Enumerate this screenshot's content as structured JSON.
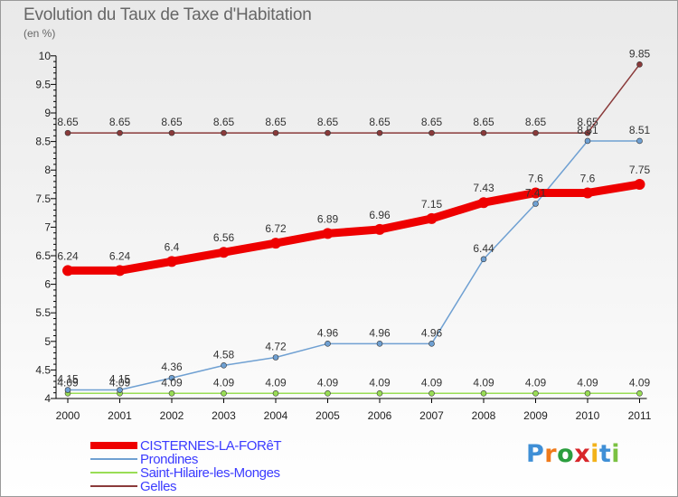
{
  "title": "Evolution du Taux de Taxe d'Habitation",
  "subtitle": "(en %)",
  "chart_data": {
    "type": "line",
    "title": "Evolution du Taux de Taxe d'Habitation",
    "ylabel": "(en %)",
    "xlabel": "",
    "x": [
      "2000",
      "2001",
      "2002",
      "2003",
      "2004",
      "2005",
      "2006",
      "2007",
      "2008",
      "2009",
      "2010",
      "2011"
    ],
    "ylim": [
      4,
      10
    ],
    "yticks": [
      "4",
      "4.5",
      "5",
      "5.5",
      "6",
      "6.5",
      "7",
      "7.5",
      "8",
      "8.5",
      "9",
      "9.5",
      "10"
    ],
    "grid": false,
    "legend": "bottom-left",
    "series": [
      {
        "name": "CISTERNES-LA-FORêT",
        "color": "#ee0000",
        "values": [
          6.24,
          6.24,
          6.4,
          6.56,
          6.72,
          6.89,
          6.96,
          7.15,
          7.43,
          7.6,
          7.6,
          7.75
        ],
        "labels": [
          "6.24",
          "6.24",
          "6.4",
          "6.56",
          "6.72",
          "6.89",
          "6.96",
          "7.15",
          "7.43",
          "7.6",
          "7.6",
          "7.75"
        ]
      },
      {
        "name": "Prondines",
        "color": "#6fa0d2",
        "values": [
          4.15,
          4.15,
          4.36,
          4.58,
          4.72,
          4.96,
          4.96,
          4.96,
          6.44,
          7.41,
          8.51,
          8.51
        ],
        "labels": [
          "4.15",
          "4.15",
          "4.36",
          "4.58",
          "4.72",
          "4.96",
          "4.96",
          "4.96",
          "6.44",
          "7.41",
          "8.51",
          "8.51"
        ]
      },
      {
        "name": "Saint-Hilaire-les-Monges",
        "color": "#99dd55",
        "values": [
          4.09,
          4.09,
          4.09,
          4.09,
          4.09,
          4.09,
          4.09,
          4.09,
          4.09,
          4.09,
          4.09,
          4.09
        ],
        "labels": [
          "4.09",
          "4.09",
          "4.09",
          "4.09",
          "4.09",
          "4.09",
          "4.09",
          "4.09",
          "4.09",
          "4.09",
          "4.09",
          "4.09"
        ]
      },
      {
        "name": "Gelles",
        "color": "#8a3a3a",
        "values": [
          8.65,
          8.65,
          8.65,
          8.65,
          8.65,
          8.65,
          8.65,
          8.65,
          8.65,
          8.65,
          8.65,
          9.85
        ],
        "labels": [
          "8.65",
          "8.65",
          "8.65",
          "8.65",
          "8.65",
          "8.65",
          "8.65",
          "8.65",
          "8.65",
          "8.65",
          "8.65",
          "9.85"
        ]
      }
    ]
  },
  "logo": {
    "letters": [
      "P",
      "r",
      "o",
      "x",
      "i",
      "t",
      "i"
    ],
    "colors": [
      "#3f8fd6",
      "#f07a1a",
      "#2b9e3e",
      "#d8262a",
      "#f2b21a",
      "#3f8fd6",
      "#7ac142"
    ]
  }
}
